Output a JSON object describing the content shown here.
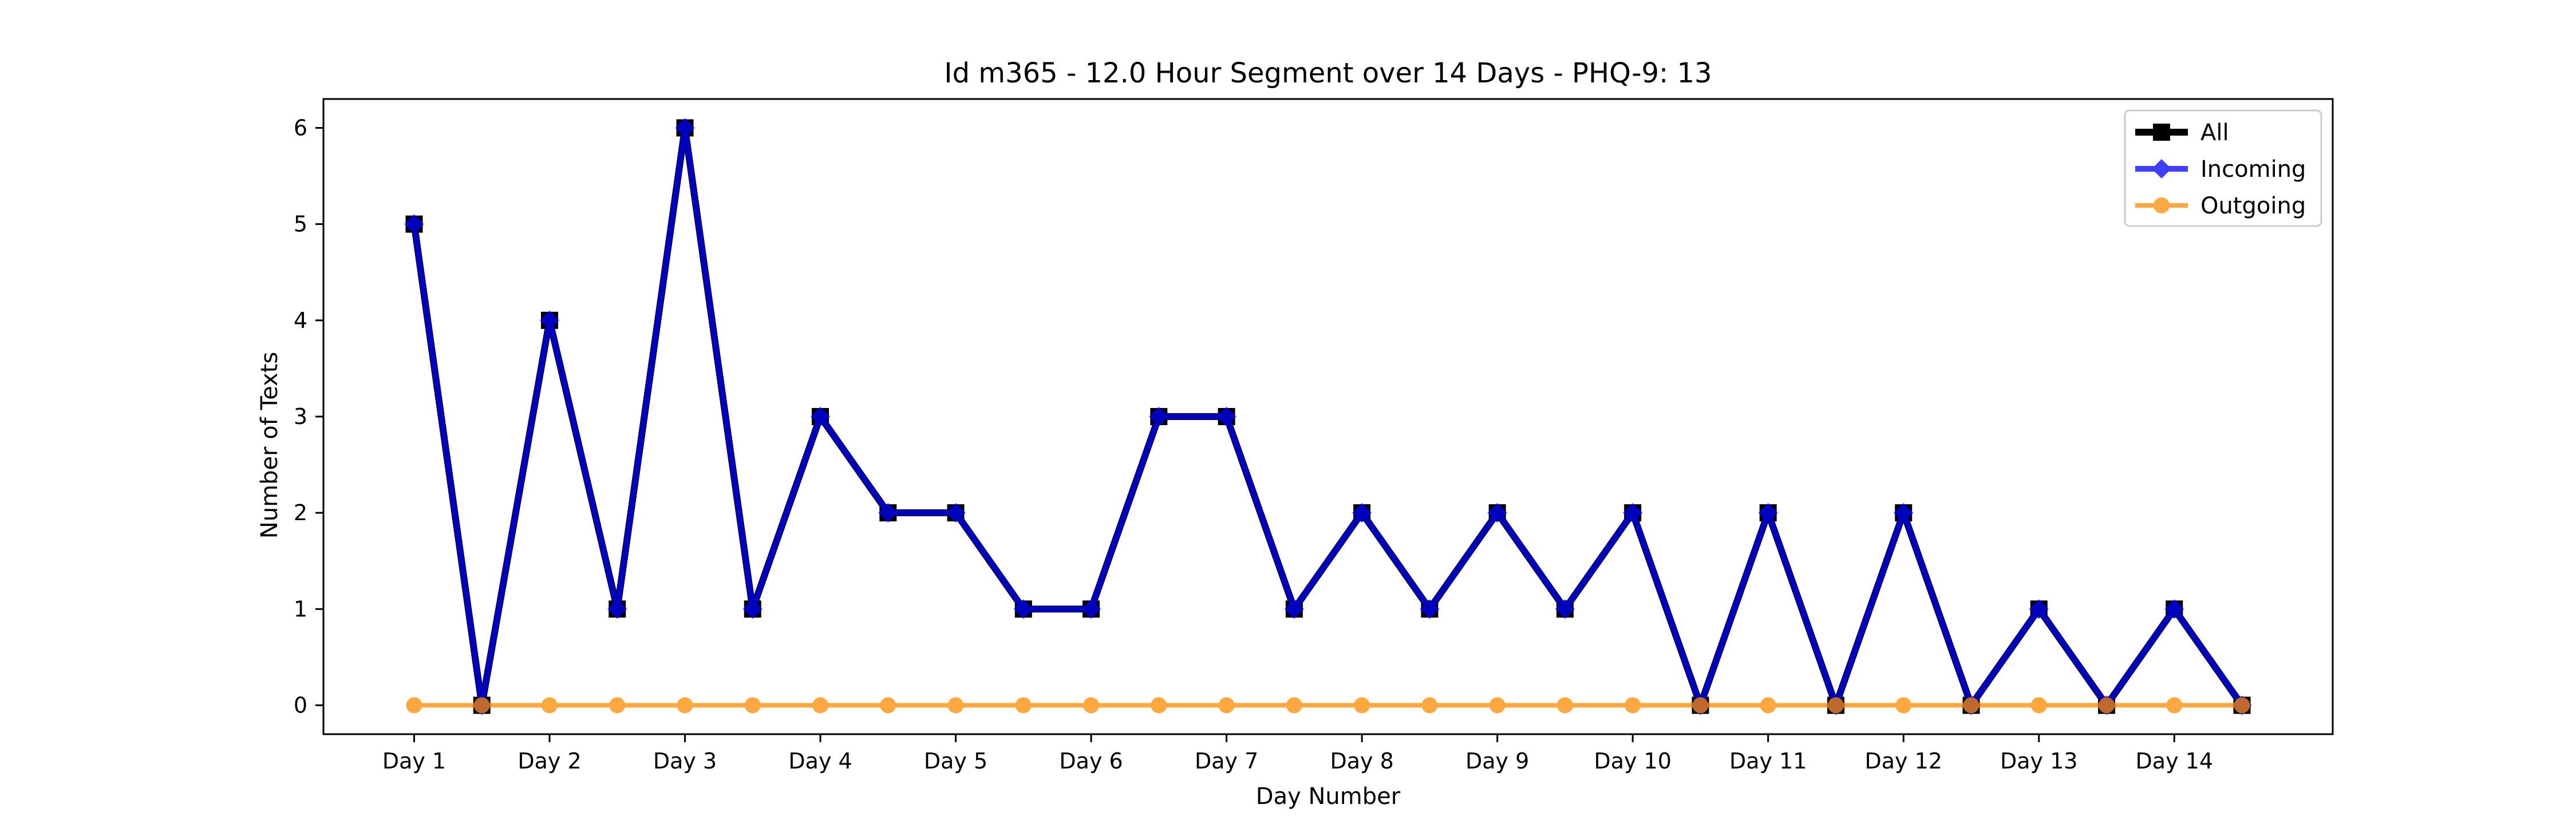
{
  "chart_data": {
    "type": "line",
    "title": "Id m365 - 12.0 Hour Segment over 14 Days - PHQ-9: 13",
    "xlabel": "Day Number",
    "ylabel": "Number of Texts",
    "x_tick_labels": [
      "Day 1",
      "Day 2",
      "Day 3",
      "Day 4",
      "Day 5",
      "Day 6",
      "Day 7",
      "Day 8",
      "Day 9",
      "Day 10",
      "Day 11",
      "Day 12",
      "Day 13",
      "Day 14"
    ],
    "x": [
      1,
      1.5,
      2,
      2.5,
      3,
      3.5,
      4,
      4.5,
      5,
      5.5,
      6,
      6.5,
      7,
      7.5,
      8,
      8.5,
      9,
      9.5,
      10,
      10.5,
      11,
      11.5,
      12,
      12.5,
      13,
      13.5,
      14,
      14.5
    ],
    "xlim": [
      0.33,
      15.17
    ],
    "ylim": [
      -0.3,
      6.3
    ],
    "y_ticks": [
      0,
      1,
      2,
      3,
      4,
      5,
      6
    ],
    "grid": false,
    "legend_position": "top-right",
    "series": [
      {
        "name": "All",
        "color": "#000000",
        "marker": "square",
        "values": [
          5,
          0,
          4,
          1,
          6,
          1,
          3,
          2,
          2,
          1,
          1,
          3,
          3,
          1,
          2,
          1,
          2,
          1,
          2,
          0,
          2,
          0,
          2,
          0,
          1,
          0,
          1,
          0
        ]
      },
      {
        "name": "Incoming",
        "color": "#0000ff",
        "marker": "diamond",
        "values": [
          5,
          0,
          4,
          1,
          6,
          1,
          3,
          2,
          2,
          1,
          1,
          3,
          3,
          1,
          2,
          1,
          2,
          1,
          2,
          0,
          2,
          0,
          2,
          0,
          1,
          0,
          1,
          0
        ]
      },
      {
        "name": "Outgoing",
        "color": "#ff8c00",
        "marker": "circle",
        "values": [
          0,
          0,
          0,
          0,
          0,
          0,
          0,
          0,
          0,
          0,
          0,
          0,
          0,
          0,
          0,
          0,
          0,
          0,
          0,
          0,
          0,
          0,
          0,
          0,
          0,
          0,
          0,
          0
        ]
      }
    ]
  }
}
